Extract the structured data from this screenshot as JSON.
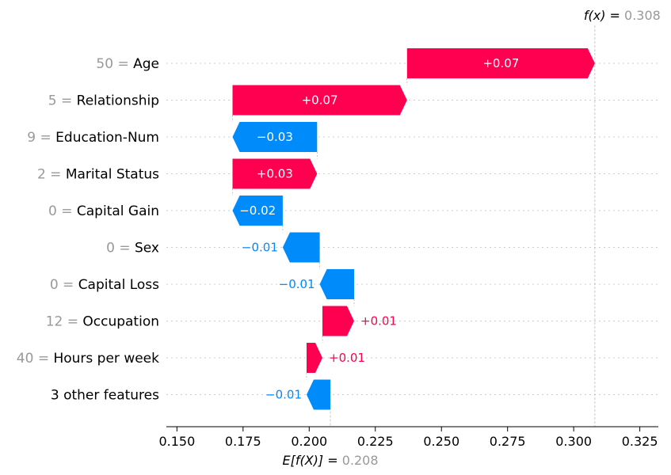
{
  "chart_data": {
    "type": "waterfall",
    "base_value": 0.208,
    "base_label_prefix": "E[f(X)] = ",
    "base_value_text": "0.208",
    "final_value": 0.308,
    "final_label_prefix": "f(x) = ",
    "final_value_text": "0.308",
    "xlim": [
      0.146,
      0.332
    ],
    "xticks": [
      0.15,
      0.175,
      0.2,
      0.225,
      0.25,
      0.275,
      0.3,
      0.325
    ],
    "xtick_labels": [
      "0.150",
      "0.175",
      "0.200",
      "0.225",
      "0.250",
      "0.275",
      "0.300",
      "0.325"
    ],
    "features": [
      {
        "value_text": "50",
        "name": "Age",
        "start": 0.237,
        "end": 0.308,
        "label": "+0.07"
      },
      {
        "value_text": "5",
        "name": "Relationship",
        "start": 0.171,
        "end": 0.237,
        "label": "+0.07"
      },
      {
        "value_text": "9",
        "name": "Education-Num",
        "start": 0.203,
        "end": 0.171,
        "label": "−0.03"
      },
      {
        "value_text": "2",
        "name": "Marital Status",
        "start": 0.171,
        "end": 0.203,
        "label": "+0.03"
      },
      {
        "value_text": "0",
        "name": "Capital Gain",
        "start": 0.19,
        "end": 0.171,
        "label": "−0.02"
      },
      {
        "value_text": "0",
        "name": "Sex",
        "start": 0.204,
        "end": 0.19,
        "label": "−0.01"
      },
      {
        "value_text": "0",
        "name": "Capital Loss",
        "start": 0.217,
        "end": 0.204,
        "label": "−0.01"
      },
      {
        "value_text": "12",
        "name": "Occupation",
        "start": 0.205,
        "end": 0.217,
        "label": "+0.01"
      },
      {
        "value_text": "40",
        "name": "Hours per week",
        "start": 0.199,
        "end": 0.205,
        "label": "+0.01"
      },
      {
        "value_text": "",
        "name": "3 other features",
        "start": 0.208,
        "end": 0.199,
        "label": "−0.01"
      }
    ],
    "colors": {
      "positive": "#ff0051",
      "negative": "#008bfb"
    }
  }
}
